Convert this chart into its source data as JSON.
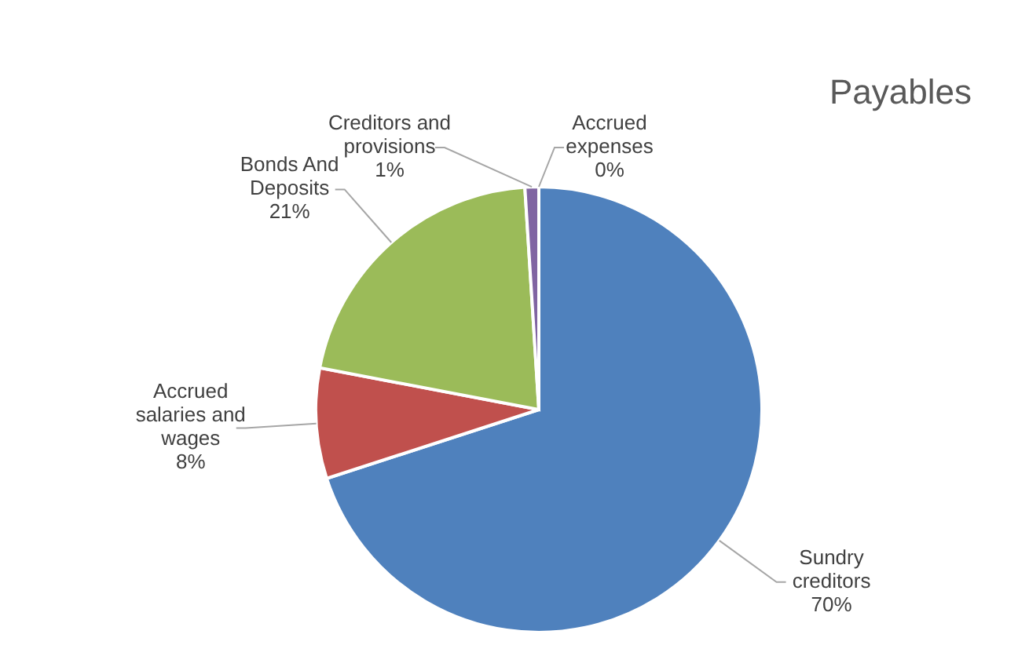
{
  "chart_data": {
    "type": "pie",
    "title": "Payables",
    "categories": [
      "Sundry creditors",
      "Accrued salaries and wages",
      "Bonds And Deposits",
      "Creditors and provisions",
      "Accrued expenses"
    ],
    "values": [
      70,
      8,
      21,
      1,
      0
    ],
    "value_labels": [
      "70%",
      "8%",
      "21%",
      "1%",
      "0%"
    ],
    "colors": [
      "#4f81bd",
      "#c0504d",
      "#9bbb59",
      "#8064a2",
      "#4bacc6"
    ],
    "legend": false
  }
}
